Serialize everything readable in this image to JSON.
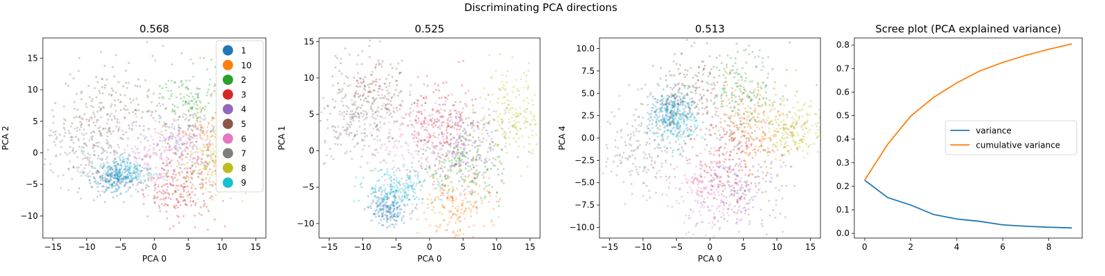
{
  "figure": {
    "suptitle": "Discriminating PCA directions"
  },
  "palette": {
    "1": "#1f77b4",
    "10": "#ff7f0e",
    "2": "#2ca02c",
    "3": "#d62728",
    "4": "#9467bd",
    "5": "#8c564b",
    "6": "#e377c2",
    "7": "#7f7f7f",
    "8": "#bcbd22",
    "9": "#17becf"
  },
  "chart_data": [
    {
      "type": "scatter",
      "title": "0.568",
      "xlabel": "PCA 0",
      "ylabel": "PCA 2",
      "xlim": [
        -16.5,
        16.5
      ],
      "ylim": [
        -13.5,
        18.2
      ],
      "xticks": [
        -15,
        -10,
        -5,
        0,
        5,
        10,
        15
      ],
      "yticks": [
        -10,
        -5,
        0,
        5,
        10,
        15
      ],
      "legend": {
        "placement": "top-right",
        "entries": [
          "1",
          "10",
          "2",
          "3",
          "4",
          "5",
          "6",
          "7",
          "8",
          "9"
        ]
      },
      "clusters": [
        {
          "label": "1",
          "center": [
            -6.0,
            -4.0
          ],
          "spread": [
            1.6,
            1.3
          ]
        },
        {
          "label": "10",
          "center": [
            8.0,
            1.0
          ],
          "spread": [
            3.0,
            3.0
          ]
        },
        {
          "label": "2",
          "center": [
            6.0,
            8.0
          ],
          "spread": [
            3.0,
            3.0
          ]
        },
        {
          "label": "3",
          "center": [
            3.5,
            -6.0
          ],
          "spread": [
            3.0,
            2.5
          ]
        },
        {
          "label": "4",
          "center": [
            4.0,
            1.0
          ],
          "spread": [
            3.0,
            2.5
          ]
        },
        {
          "label": "5",
          "center": [
            -7.0,
            7.0
          ],
          "spread": [
            3.5,
            3.5
          ]
        },
        {
          "label": "6",
          "center": [
            0.0,
            -1.0
          ],
          "spread": [
            3.5,
            3.0
          ]
        },
        {
          "label": "7",
          "center": [
            -10.0,
            0.0
          ],
          "spread": [
            3.0,
            3.0
          ]
        },
        {
          "label": "8",
          "center": [
            9.0,
            -3.0
          ],
          "spread": [
            3.0,
            2.5
          ]
        },
        {
          "label": "9",
          "center": [
            -4.0,
            -3.0
          ],
          "spread": [
            2.0,
            1.5
          ]
        }
      ]
    },
    {
      "type": "scatter",
      "title": "0.525",
      "xlabel": "PCA 0",
      "ylabel": "PCA 1",
      "xlim": [
        -16.5,
        16.5
      ],
      "ylim": [
        -12.0,
        15.5
      ],
      "xticks": [
        -15,
        -10,
        -5,
        0,
        5,
        10,
        15
      ],
      "yticks": [
        -10,
        -5,
        0,
        5,
        10,
        15
      ],
      "clusters": [
        {
          "label": "1",
          "center": [
            -6.0,
            -8.0
          ],
          "spread": [
            1.5,
            1.2
          ]
        },
        {
          "label": "10",
          "center": [
            4.0,
            -7.5
          ],
          "spread": [
            3.0,
            2.0
          ]
        },
        {
          "label": "2",
          "center": [
            5.0,
            -2.0
          ],
          "spread": [
            3.0,
            2.5
          ]
        },
        {
          "label": "3",
          "center": [
            2.0,
            4.0
          ],
          "spread": [
            3.0,
            3.0
          ]
        },
        {
          "label": "4",
          "center": [
            5.0,
            1.0
          ],
          "spread": [
            3.0,
            3.0
          ]
        },
        {
          "label": "5",
          "center": [
            -9.0,
            8.0
          ],
          "spread": [
            3.0,
            3.0
          ]
        },
        {
          "label": "6",
          "center": [
            -2.0,
            1.0
          ],
          "spread": [
            3.5,
            3.0
          ]
        },
        {
          "label": "7",
          "center": [
            -11.0,
            4.0
          ],
          "spread": [
            3.0,
            3.0
          ]
        },
        {
          "label": "8",
          "center": [
            12.0,
            5.0
          ],
          "spread": [
            2.5,
            3.0
          ]
        },
        {
          "label": "9",
          "center": [
            -5.0,
            -5.0
          ],
          "spread": [
            2.5,
            1.5
          ]
        }
      ]
    },
    {
      "type": "scatter",
      "title": "0.513",
      "xlabel": "PCA 0",
      "ylabel": "PCA 4",
      "xlim": [
        -16.5,
        16.5
      ],
      "ylim": [
        -11.2,
        11.2
      ],
      "xticks": [
        -15,
        -10,
        -5,
        0,
        5,
        10,
        15
      ],
      "yticks": [
        -10.0,
        -7.5,
        -5.0,
        -2.5,
        0.0,
        2.5,
        5.0,
        7.5,
        10.0
      ],
      "ytick_labels": [
        "−10.0",
        "−7.5",
        "−5.0",
        "−2.5",
        "0.0",
        "2.5",
        "5.0",
        "7.5",
        "10.0"
      ],
      "clusters": [
        {
          "label": "1",
          "center": [
            -6.0,
            3.0
          ],
          "spread": [
            1.5,
            1.5
          ]
        },
        {
          "label": "10",
          "center": [
            7.0,
            1.5
          ],
          "spread": [
            3.0,
            2.5
          ]
        },
        {
          "label": "2",
          "center": [
            5.0,
            5.0
          ],
          "spread": [
            3.0,
            2.5
          ]
        },
        {
          "label": "3",
          "center": [
            3.0,
            -2.0
          ],
          "spread": [
            3.0,
            3.0
          ]
        },
        {
          "label": "4",
          "center": [
            5.0,
            -6.0
          ],
          "spread": [
            3.0,
            2.5
          ]
        },
        {
          "label": "5",
          "center": [
            -3.0,
            5.0
          ],
          "spread": [
            3.0,
            2.5
          ]
        },
        {
          "label": "6",
          "center": [
            -1.0,
            -6.0
          ],
          "spread": [
            3.0,
            2.5
          ]
        },
        {
          "label": "7",
          "center": [
            -10.0,
            -1.0
          ],
          "spread": [
            3.0,
            2.5
          ]
        },
        {
          "label": "8",
          "center": [
            13.0,
            1.0
          ],
          "spread": [
            2.5,
            1.5
          ]
        },
        {
          "label": "9",
          "center": [
            -5.0,
            2.0
          ],
          "spread": [
            2.0,
            1.5
          ]
        }
      ]
    },
    {
      "type": "line",
      "title": "Scree plot (PCA explained variance)",
      "xlim": [
        -0.45,
        9.45
      ],
      "ylim": [
        -0.02,
        0.83
      ],
      "xticks": [
        0,
        2,
        4,
        6,
        8
      ],
      "yticks": [
        0.0,
        0.1,
        0.2,
        0.3,
        0.4,
        0.5,
        0.6,
        0.7,
        0.8
      ],
      "legend": {
        "placement": "center-right",
        "entries": [
          "variance",
          "cumulative variance"
        ]
      },
      "x": [
        0,
        1,
        2,
        3,
        4,
        5,
        6,
        7,
        8,
        9
      ],
      "series": [
        {
          "name": "variance",
          "color": "#1f77b4",
          "values": [
            0.226,
            0.152,
            0.12,
            0.08,
            0.061,
            0.051,
            0.036,
            0.03,
            0.026,
            0.023
          ]
        },
        {
          "name": "cumulative variance",
          "color": "#ff7f0e",
          "values": [
            0.226,
            0.378,
            0.498,
            0.578,
            0.639,
            0.69,
            0.726,
            0.756,
            0.782,
            0.805
          ]
        }
      ]
    }
  ]
}
